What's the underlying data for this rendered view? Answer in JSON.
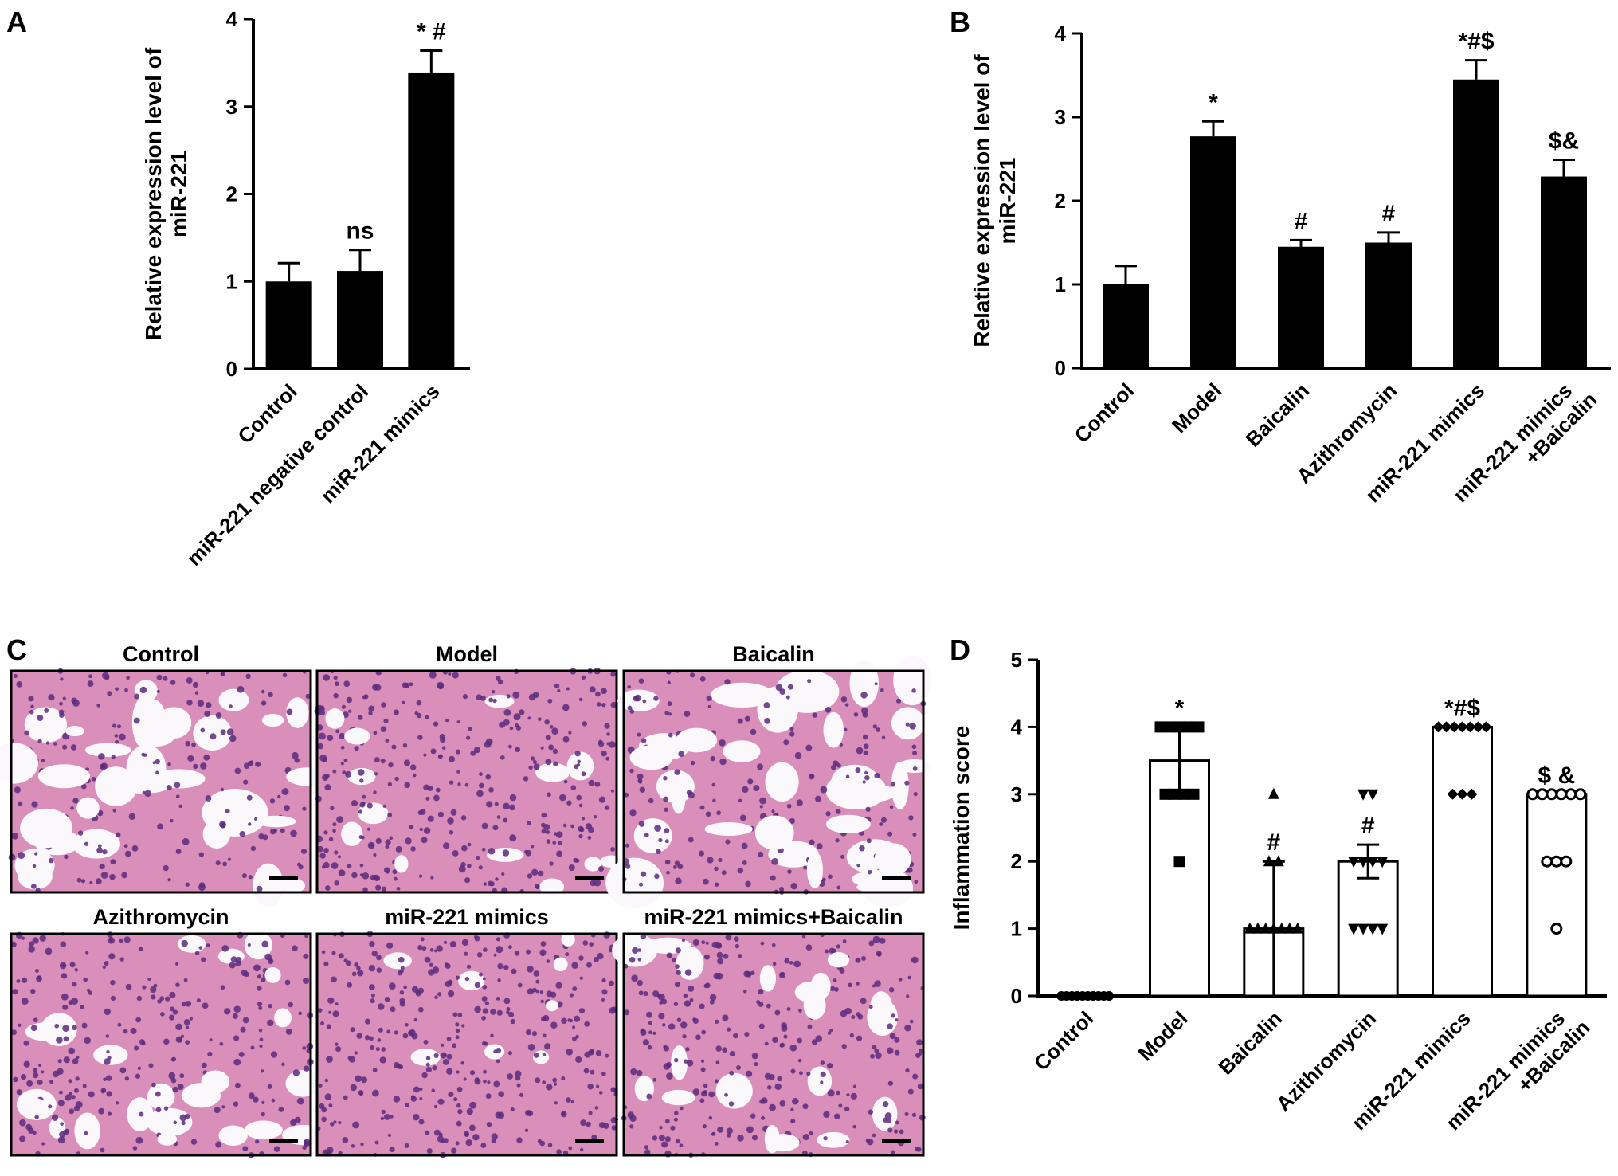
{
  "panel_letters": [
    "A",
    "B",
    "C",
    "D"
  ],
  "colors": {
    "bar_black": "#000000",
    "bar_white": "#ffffff",
    "tissue_bg": "#f3e9f1",
    "tissue_pink": "#d98fb9",
    "tissue_purple": "#5b2c7e"
  },
  "panelC": {
    "titles": [
      "Control",
      "Model",
      "Baicalin",
      "Azithromycin",
      "miR-221 mimics",
      "miR-221 mimics+Baicalin"
    ],
    "tissue_density": [
      0.35,
      0.85,
      0.4,
      0.65,
      0.95,
      0.7
    ]
  },
  "chart_data": [
    {
      "panel": "A",
      "type": "bar",
      "categories": [
        "Control",
        "miR-221 negative control",
        "miR-221 mimics"
      ],
      "values": [
        1.0,
        1.12,
        3.39
      ],
      "errors": [
        0.21,
        0.24,
        0.25
      ],
      "annotations": [
        "",
        "ns",
        "* #"
      ],
      "ylabel_lines": [
        "Relative expression level  of",
        "miR-221"
      ],
      "ylim": [
        0,
        4
      ],
      "yticks": [
        0,
        1,
        2,
        3,
        4
      ],
      "legend": "none",
      "grid": false
    },
    {
      "panel": "B",
      "type": "bar",
      "categories": [
        "Control",
        "Model",
        "Baicalin",
        "Azithromycin",
        "miR-221 mimics",
        "miR-221 mimics\n+Baicalin"
      ],
      "values": [
        1.0,
        2.77,
        1.45,
        1.5,
        3.45,
        2.29
      ],
      "errors": [
        0.22,
        0.18,
        0.08,
        0.12,
        0.23,
        0.2
      ],
      "annotations": [
        "",
        "*",
        "#",
        "#",
        "*#$",
        "$&"
      ],
      "ylabel_lines": [
        "Relative expression level  of",
        "miR-221"
      ],
      "ylim": [
        0,
        4
      ],
      "yticks": [
        0,
        1,
        2,
        3,
        4
      ],
      "legend": "none",
      "grid": false
    },
    {
      "panel": "D",
      "type": "bar",
      "categories": [
        "Control",
        "Model",
        "Baicalin",
        "Azithromycin",
        "miR-221 mimics",
        "miR-221 mimics\n+Baicalin"
      ],
      "values": [
        0.0,
        3.5,
        1.0,
        2.0,
        4.0,
        3.0
      ],
      "errors": [
        0.0,
        0.5,
        1.0,
        0.25,
        0.0,
        0.0
      ],
      "points": [
        [
          0,
          0,
          0,
          0,
          0,
          0,
          0,
          0,
          0,
          0
        ],
        [
          4,
          4,
          4,
          4,
          4,
          3,
          3,
          3,
          3,
          2
        ],
        [
          3,
          2,
          2,
          1,
          1,
          1,
          1,
          1,
          1,
          1
        ],
        [
          3,
          3,
          2,
          2,
          2,
          2,
          1,
          1,
          1,
          1
        ],
        [
          4,
          4,
          4,
          4,
          4,
          4,
          4,
          3,
          3,
          3
        ],
        [
          3,
          3,
          3,
          3,
          3,
          3,
          2,
          2,
          2,
          1
        ]
      ],
      "markers": [
        "circle-filled",
        "square",
        "triangle-up",
        "triangle-down",
        "diamond",
        "circle-open"
      ],
      "annotations": [
        "",
        "*",
        "#",
        "#",
        "*#$",
        "$ &"
      ],
      "ylabel": "Inflammation score",
      "ylim": [
        0,
        5
      ],
      "yticks": [
        0,
        1,
        2,
        3,
        4,
        5
      ],
      "legend": "none",
      "grid": false
    }
  ]
}
